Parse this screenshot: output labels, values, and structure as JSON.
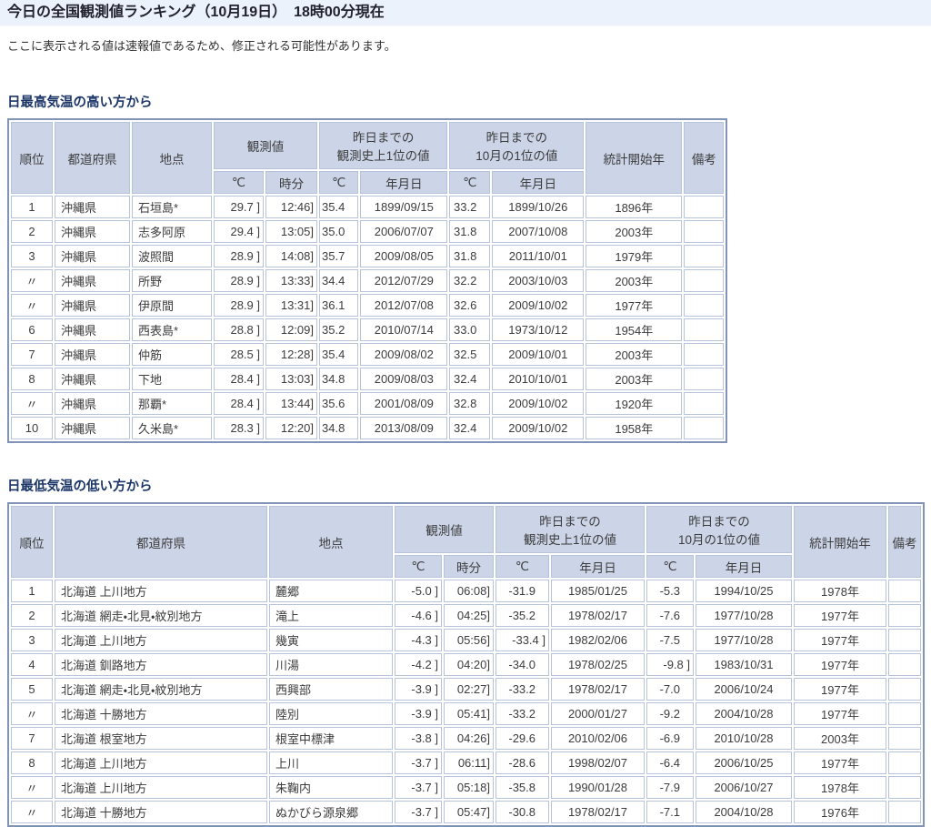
{
  "page": {
    "title": "今日の全国観測値ランキング（10月19日）　18時00分現在",
    "notice": "ここに表示される値は速報値であるため、修正される可能性があります。"
  },
  "colors": {
    "title_bar_bg": "#ecf2fb",
    "section_heading_text": "#1c3668",
    "table_header_bg": "#ccd5e8",
    "table_outer_border": "#8293b8",
    "cell_border": "#b6c3da"
  },
  "table_headers": {
    "rank": "順位",
    "pref": "都道府県",
    "station": "地点",
    "observed": "観測値",
    "record_all_line1": "昨日までの",
    "record_all_line2": "観測史上1位の値",
    "record_oct_line1": "昨日までの",
    "record_oct_line2": "10月の1位の値",
    "start_year": "統計開始年",
    "remarks": "備考",
    "deg": "℃",
    "time": "時分",
    "date": "年月日"
  },
  "tables": [
    {
      "section_title": "日最高気温の高い方から",
      "rows": [
        [
          "1",
          "沖縄県",
          "石垣島*",
          "29.7 ]",
          "12:46]",
          "35.4",
          "1899/09/15",
          "33.2",
          "1899/10/26",
          "1896年",
          ""
        ],
        [
          "2",
          "沖縄県",
          "志多阿原",
          "29.4 ]",
          "13:05]",
          "35.0",
          "2006/07/07",
          "31.8",
          "2007/10/08",
          "2003年",
          ""
        ],
        [
          "3",
          "沖縄県",
          "波照間",
          "28.9 ]",
          "14:08]",
          "35.7",
          "2009/08/05",
          "31.8",
          "2011/10/01",
          "1979年",
          ""
        ],
        [
          "〃",
          "沖縄県",
          "所野",
          "28.9 ]",
          "13:33]",
          "34.4",
          "2012/07/29",
          "32.2",
          "2003/10/03",
          "2003年",
          ""
        ],
        [
          "〃",
          "沖縄県",
          "伊原間",
          "28.9 ]",
          "13:31]",
          "36.1",
          "2012/07/08",
          "32.6",
          "2009/10/02",
          "1977年",
          ""
        ],
        [
          "6",
          "沖縄県",
          "西表島*",
          "28.8 ]",
          "12:09]",
          "35.2",
          "2010/07/14",
          "33.0",
          "1973/10/12",
          "1954年",
          ""
        ],
        [
          "7",
          "沖縄県",
          "仲筋",
          "28.5 ]",
          "12:28]",
          "35.4",
          "2009/08/02",
          "32.5",
          "2009/10/01",
          "2003年",
          ""
        ],
        [
          "8",
          "沖縄県",
          "下地",
          "28.4 ]",
          "13:03]",
          "34.8",
          "2009/08/03",
          "32.4",
          "2010/10/01",
          "2003年",
          ""
        ],
        [
          "〃",
          "沖縄県",
          "那覇*",
          "28.4 ]",
          "13:44]",
          "35.6",
          "2001/08/09",
          "32.8",
          "2009/10/02",
          "1920年",
          ""
        ],
        [
          "10",
          "沖縄県",
          "久米島*",
          "28.3 ]",
          "12:20]",
          "34.8",
          "2013/08/09",
          "32.4",
          "2009/10/02",
          "1958年",
          ""
        ]
      ]
    },
    {
      "section_title": "日最低気温の低い方から",
      "rows": [
        [
          "1",
          "北海道 上川地方",
          "麓郷",
          "-5.0 ]",
          "06:08]",
          "-31.9",
          "1985/01/25",
          "-5.3",
          "1994/10/25",
          "1978年",
          ""
        ],
        [
          "2",
          "北海道 網走・北見・紋別地方",
          "滝上",
          "-4.6 ]",
          "04:25]",
          "-35.2",
          "1978/02/17",
          "-7.6",
          "1977/10/28",
          "1977年",
          ""
        ],
        [
          "3",
          "北海道 上川地方",
          "幾寅",
          "-4.3 ]",
          "05:56]",
          "-33.4 ]",
          "1982/02/06",
          "-7.5",
          "1977/10/28",
          "1977年",
          ""
        ],
        [
          "4",
          "北海道 釧路地方",
          "川湯",
          "-4.2 ]",
          "04:20]",
          "-34.0",
          "1978/02/25",
          "-9.8 ]",
          "1983/10/31",
          "1977年",
          ""
        ],
        [
          "5",
          "北海道 網走・北見・紋別地方",
          "西興部",
          "-3.9 ]",
          "02:27]",
          "-33.2",
          "1978/02/17",
          "-7.0",
          "2006/10/24",
          "1977年",
          ""
        ],
        [
          "〃",
          "北海道 十勝地方",
          "陸別",
          "-3.9 ]",
          "05:41]",
          "-33.2",
          "2000/01/27",
          "-9.2",
          "2004/10/28",
          "1977年",
          ""
        ],
        [
          "7",
          "北海道 根室地方",
          "根室中標津",
          "-3.8 ]",
          "04:26]",
          "-29.6",
          "2010/02/06",
          "-6.9",
          "2010/10/28",
          "2003年",
          ""
        ],
        [
          "8",
          "北海道 上川地方",
          "上川",
          "-3.7 ]",
          "06:11]",
          "-28.6",
          "1998/02/07",
          "-6.4",
          "2006/10/25",
          "1977年",
          ""
        ],
        [
          "〃",
          "北海道 上川地方",
          "朱鞠内",
          "-3.7 ]",
          "05:18]",
          "-35.8",
          "1990/01/28",
          "-7.9",
          "2006/10/27",
          "1978年",
          ""
        ],
        [
          "〃",
          "北海道 十勝地方",
          "ぬかびら源泉郷",
          "-3.7 ]",
          "05:47]",
          "-30.8",
          "1978/02/17",
          "-7.1",
          "2004/10/28",
          "1976年",
          ""
        ]
      ]
    }
  ]
}
